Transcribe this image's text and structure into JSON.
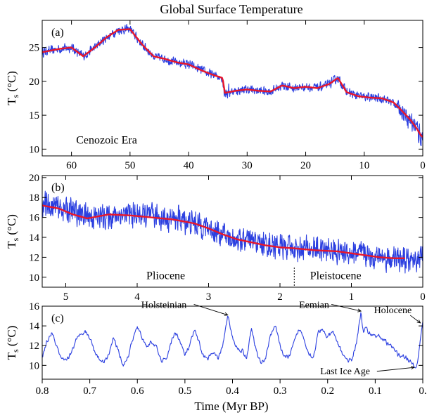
{
  "figure": {
    "title": "Global Surface Temperature",
    "xlabel": "Time (Myr BP)"
  },
  "chart_data": [
    {
      "panel": "(a)",
      "type": "line",
      "ylabel": "Ts (°C)",
      "xlim": [
        65,
        0
      ],
      "ylim": [
        9,
        29
      ],
      "xticks": [
        60,
        50,
        40,
        30,
        20,
        10,
        0
      ],
      "yticks": [
        10,
        15,
        20,
        25
      ],
      "annotations": [
        {
          "text": "Cenozoic Era",
          "x": 54,
          "y": 10.8
        }
      ],
      "series": [
        {
          "color": "#2b3fe0",
          "x": [
            65,
            62,
            60,
            58,
            56,
            54,
            52,
            50,
            48,
            46,
            44,
            42,
            40,
            38,
            36,
            34.2,
            33.8,
            32,
            30,
            28,
            26,
            24,
            22,
            20,
            18,
            16,
            14.5,
            13,
            11,
            9,
            7,
            5,
            3.5,
            2,
            1,
            0.3,
            0
          ],
          "y": [
            24.3,
            24.8,
            25,
            23.7,
            25,
            26.5,
            27.6,
            27.7,
            25.5,
            23.7,
            23.3,
            22.8,
            22.5,
            21.7,
            21,
            20.5,
            18.3,
            18.6,
            18.8,
            18.6,
            18.5,
            19.4,
            19,
            19.2,
            19,
            19.6,
            20.5,
            18.4,
            17.8,
            17.6,
            17.5,
            16.9,
            15.6,
            14.2,
            13,
            12,
            11.8
          ],
          "amp": 0.8
        },
        {
          "color": "#e8162b",
          "x": [
            65,
            62,
            60,
            58,
            56,
            54,
            52,
            50,
            48,
            46,
            44,
            42,
            40,
            38,
            36,
            34.2,
            33.8,
            32,
            30,
            28,
            26,
            24,
            22,
            20,
            18,
            16,
            14.5,
            13,
            11,
            9,
            7,
            5,
            3.5,
            2,
            1,
            0.3,
            0
          ],
          "y": [
            24.3,
            24.8,
            25,
            23.7,
            25,
            26.5,
            27.6,
            27.7,
            25.5,
            23.7,
            23.3,
            22.8,
            22.5,
            21.7,
            21,
            20.5,
            18.3,
            18.6,
            18.8,
            18.6,
            18.5,
            19.4,
            19,
            19.2,
            19,
            19.6,
            20.5,
            18.4,
            17.8,
            17.6,
            17.5,
            16.9,
            15.6,
            14.2,
            13,
            12,
            11.8
          ]
        }
      ]
    },
    {
      "panel": "(b)",
      "type": "line",
      "ylabel": "Ts (°C)",
      "xlim": [
        5.33,
        0
      ],
      "ylim": [
        9,
        20.2
      ],
      "xticks": [
        5,
        4,
        3,
        2,
        1,
        0
      ],
      "yticks": [
        10,
        12,
        14,
        16,
        18,
        20
      ],
      "vline": 1.8,
      "annotations": [
        {
          "text": "Pliocene",
          "x": 3.6,
          "y": 9.8
        },
        {
          "text": "Pleistocene",
          "x": 1.22,
          "y": 9.8
        }
      ],
      "series": [
        {
          "color": "#2b3fe0",
          "x": [
            5.33,
            5.0,
            4.6,
            4.2,
            3.8,
            3.4,
            3.0,
            2.7,
            2.4,
            2.1,
            1.8,
            1.5,
            1.2,
            0.9,
            0.6,
            0.4,
            0.2,
            0
          ],
          "y": [
            17.3,
            16.8,
            16.0,
            16.3,
            16.1,
            15.8,
            15.0,
            13.9,
            13.6,
            13.2,
            12.9,
            12.8,
            12.6,
            12.4,
            12.0,
            11.8,
            11.6,
            12.0
          ],
          "amp": 1.5
        },
        {
          "color": "#e8162b",
          "x": [
            5.33,
            5.1,
            4.9,
            4.7,
            4.4,
            4.1,
            3.8,
            3.5,
            3.2,
            3.0,
            2.8,
            2.6,
            2.4,
            2.2,
            2.0,
            1.8,
            1.5,
            1.2,
            1.0,
            0.8,
            0.6,
            0.4,
            0.25
          ],
          "y": [
            17.2,
            16.9,
            16.3,
            15.9,
            16.3,
            16.2,
            16.0,
            15.8,
            15.4,
            14.9,
            14.3,
            13.8,
            13.5,
            13.2,
            13.0,
            12.9,
            12.7,
            12.6,
            12.4,
            12.2,
            12.0,
            11.9,
            11.9
          ]
        }
      ]
    },
    {
      "panel": "(c)",
      "type": "line",
      "ylabel": "Ts (°C)",
      "xlim": [
        0.8,
        0
      ],
      "ylim": [
        8.6,
        16
      ],
      "xticks": [
        0.8,
        0.7,
        0.6,
        0.5,
        0.4,
        0.3,
        0.2,
        0.1,
        0
      ],
      "xticklabels": [
        "0.8",
        "0.7",
        "0.6",
        "0.5",
        "0.4",
        "0.3",
        "0.2",
        "0.1",
        "0."
      ],
      "yticks": [
        10,
        12,
        14,
        16
      ],
      "annotations": [
        {
          "text": "Holsteinian",
          "x": 0.488,
          "y": 15.4,
          "arrow_to": [
            0.41,
            15.1
          ]
        },
        {
          "text": "Eemian",
          "x": 0.19,
          "y": 15.4,
          "arrow_to": [
            0.13,
            15.5
          ]
        },
        {
          "text": "Holocene",
          "x": 0.063,
          "y": 15.0,
          "arrow_to": [
            0.005,
            14.3
          ]
        },
        {
          "text": "Last Ice Age",
          "x": 0.107,
          "y": 9.4,
          "arrow_to": [
            0.018,
            9.8
          ]
        }
      ],
      "series": [
        {
          "color": "#2b3fe0",
          "x": [
            0.8,
            0.79,
            0.78,
            0.77,
            0.76,
            0.75,
            0.74,
            0.73,
            0.72,
            0.71,
            0.7,
            0.69,
            0.68,
            0.67,
            0.66,
            0.65,
            0.64,
            0.63,
            0.62,
            0.61,
            0.6,
            0.59,
            0.58,
            0.57,
            0.56,
            0.55,
            0.54,
            0.53,
            0.52,
            0.51,
            0.5,
            0.49,
            0.48,
            0.47,
            0.46,
            0.45,
            0.44,
            0.43,
            0.42,
            0.41,
            0.4,
            0.39,
            0.38,
            0.37,
            0.36,
            0.35,
            0.34,
            0.33,
            0.32,
            0.31,
            0.3,
            0.29,
            0.28,
            0.27,
            0.26,
            0.25,
            0.24,
            0.23,
            0.22,
            0.21,
            0.2,
            0.19,
            0.18,
            0.17,
            0.16,
            0.15,
            0.14,
            0.13,
            0.125,
            0.12,
            0.11,
            0.1,
            0.09,
            0.08,
            0.07,
            0.06,
            0.05,
            0.04,
            0.03,
            0.02,
            0.015,
            0.01,
            0.005,
            0
          ],
          "y": [
            10.8,
            12.4,
            13.3,
            12.0,
            10.6,
            10.4,
            11.2,
            12.4,
            13.2,
            13.5,
            12.8,
            11.5,
            10.6,
            10.4,
            11.2,
            12.8,
            11.5,
            10.0,
            10.8,
            12.6,
            13.9,
            12.8,
            11.9,
            12.4,
            11.8,
            10.5,
            10.5,
            12.2,
            13.4,
            12.4,
            11.0,
            12.0,
            13.6,
            12.2,
            10.8,
            10.8,
            11.3,
            10.6,
            12.2,
            15.0,
            12.8,
            11.7,
            11.5,
            10.8,
            13.8,
            11.4,
            10.2,
            10.8,
            13.2,
            14.0,
            12.0,
            10.8,
            10.9,
            12.4,
            13.7,
            12.8,
            11.2,
            10.8,
            13.3,
            13.6,
            12.8,
            13.4,
            12.4,
            11.3,
            10.6,
            10.4,
            12.2,
            15.4,
            13.2,
            13.8,
            13.2,
            13.0,
            12.9,
            12.5,
            12.1,
            11.6,
            11.0,
            11.0,
            10.5,
            10.0,
            9.7,
            10.5,
            12.8,
            14.3
          ],
          "amp": 0.28
        }
      ]
    }
  ]
}
